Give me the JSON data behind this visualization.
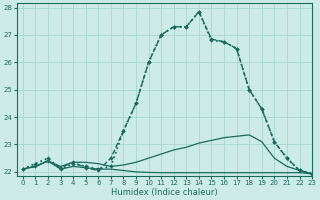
{
  "xlabel": "Humidex (Indice chaleur)",
  "bg_color": "#cceae7",
  "grid_color": "#aad4d0",
  "line_color": "#1a6b5e",
  "xlim": [
    -0.5,
    23
  ],
  "ylim": [
    21.85,
    28.15
  ],
  "yticks": [
    22,
    23,
    24,
    25,
    26,
    27,
    28
  ],
  "xticks": [
    0,
    1,
    2,
    3,
    4,
    5,
    6,
    7,
    8,
    9,
    10,
    11,
    12,
    13,
    14,
    15,
    16,
    17,
    18,
    19,
    20,
    21,
    22,
    23
  ],
  "s1_x": [
    0,
    1,
    2,
    3,
    4,
    5,
    6,
    7,
    8,
    9,
    10,
    11,
    12,
    13,
    14,
    15,
    16,
    17,
    18,
    19,
    20,
    21,
    22,
    23
  ],
  "s1_y": [
    22.1,
    22.2,
    22.4,
    22.1,
    22.2,
    22.15,
    22.1,
    22.1,
    22.05,
    22.0,
    21.98,
    21.97,
    21.97,
    21.97,
    21.97,
    21.97,
    21.97,
    21.97,
    21.97,
    21.97,
    21.97,
    21.97,
    21.97,
    21.93
  ],
  "s2_x": [
    0,
    1,
    2,
    3,
    4,
    5,
    6,
    7,
    8,
    9,
    10,
    11,
    12,
    13,
    14,
    15,
    16,
    17,
    18,
    19,
    20,
    21,
    22,
    23
  ],
  "s2_y": [
    22.1,
    22.2,
    22.4,
    22.2,
    22.35,
    22.35,
    22.3,
    22.2,
    22.25,
    22.35,
    22.5,
    22.65,
    22.8,
    22.9,
    23.05,
    23.15,
    23.25,
    23.3,
    23.35,
    23.1,
    22.5,
    22.2,
    22.05,
    21.93
  ],
  "s3_x": [
    0,
    1,
    2,
    3,
    4,
    5,
    6,
    7,
    8,
    9,
    10,
    11,
    12,
    13,
    14,
    15,
    16,
    17,
    18,
    19,
    20,
    21,
    22,
    23
  ],
  "s3_y": [
    22.1,
    22.3,
    22.5,
    22.1,
    22.3,
    22.2,
    22.1,
    22.2,
    23.5,
    24.5,
    26.0,
    27.0,
    27.3,
    27.3,
    27.85,
    26.8,
    26.75,
    26.5,
    25.0,
    24.3,
    23.1,
    22.5,
    22.05,
    21.93
  ],
  "s4_x": [
    0,
    1,
    2,
    3,
    4,
    5,
    6,
    7,
    8,
    9,
    10,
    11,
    12,
    13,
    14,
    15,
    16,
    17,
    18,
    19,
    20,
    21,
    22,
    23
  ],
  "s4_y": [
    22.1,
    22.2,
    22.4,
    22.15,
    22.35,
    22.15,
    22.05,
    22.5,
    23.5,
    24.5,
    26.0,
    27.0,
    27.3,
    27.3,
    27.85,
    26.85,
    26.75,
    26.5,
    25.0,
    24.3,
    23.1,
    22.5,
    22.05,
    21.93
  ]
}
